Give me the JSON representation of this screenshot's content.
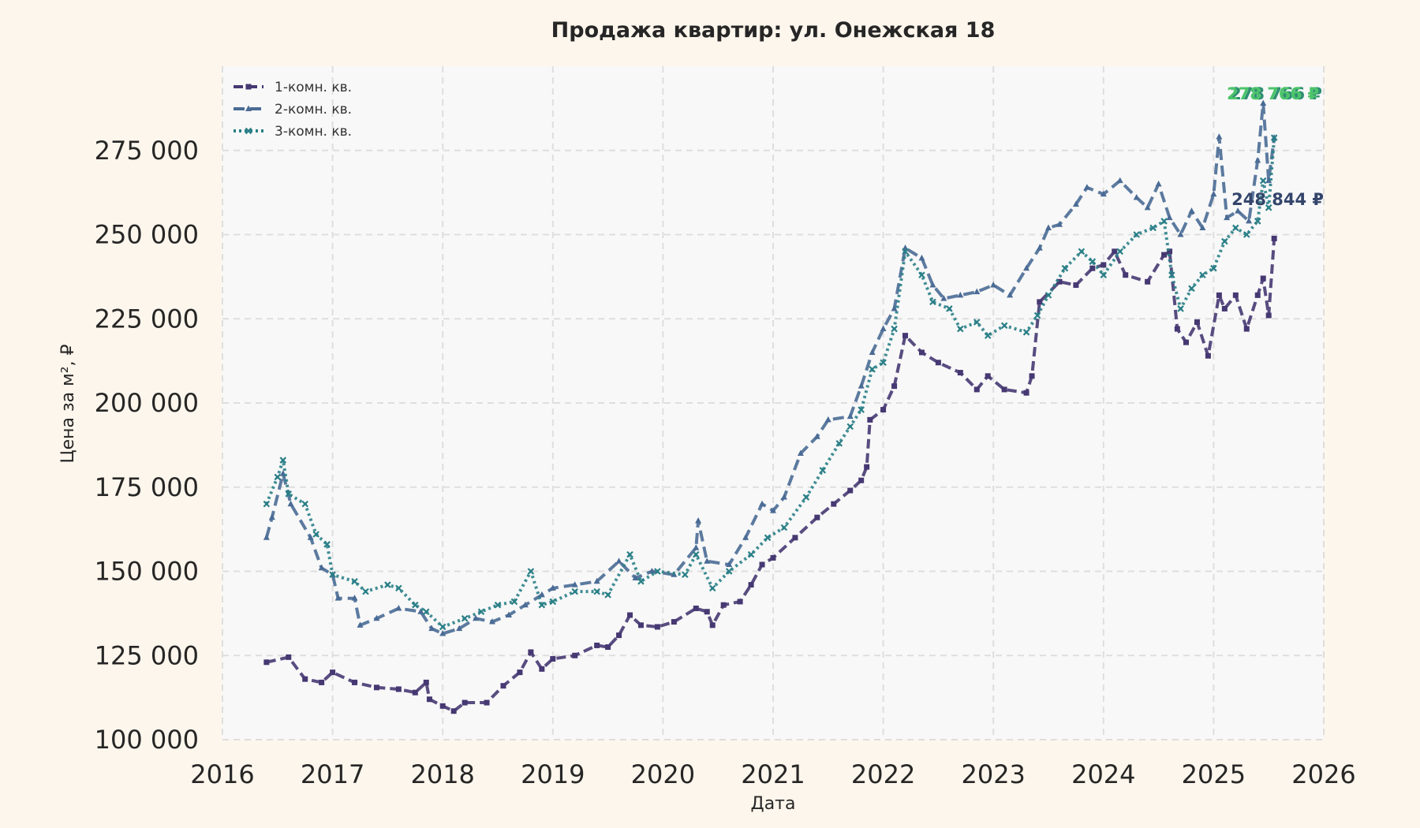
{
  "chart_data": {
    "type": "line",
    "title": "Продажа квартир: ул. Онежская 18",
    "xlabel": "Дата",
    "ylabel": "Цена за м², ₽",
    "xlim": [
      2016,
      2026
    ],
    "ylim": [
      100000,
      300000
    ],
    "x_ticks": [
      "2016",
      "2017",
      "2018",
      "2019",
      "2020",
      "2021",
      "2022",
      "2023",
      "2024",
      "2025",
      "2026"
    ],
    "y_ticks": [
      "100 000",
      "125 000",
      "150 000",
      "175 000",
      "200 000",
      "225 000",
      "250 000",
      "275 000"
    ],
    "y_tick_values": [
      100000,
      125000,
      150000,
      175000,
      200000,
      225000,
      250000,
      275000
    ],
    "grid": true,
    "legend_position": "top-left",
    "series": [
      {
        "name": "1-комн. кв.",
        "color": "#463872",
        "marker": "square",
        "end_label": "248 844 ₽",
        "points": [
          [
            2016.4,
            123000
          ],
          [
            2016.6,
            124500
          ],
          [
            2016.75,
            118000
          ],
          [
            2016.9,
            117000
          ],
          [
            2017.0,
            120000
          ],
          [
            2017.2,
            117000
          ],
          [
            2017.4,
            115500
          ],
          [
            2017.6,
            115000
          ],
          [
            2017.75,
            114000
          ],
          [
            2017.85,
            117000
          ],
          [
            2017.88,
            112000
          ],
          [
            2018.0,
            110000
          ],
          [
            2018.1,
            108500
          ],
          [
            2018.2,
            111000
          ],
          [
            2018.4,
            111000
          ],
          [
            2018.55,
            116000
          ],
          [
            2018.7,
            120000
          ],
          [
            2018.8,
            126000
          ],
          [
            2018.9,
            121000
          ],
          [
            2019.0,
            124000
          ],
          [
            2019.2,
            125000
          ],
          [
            2019.4,
            128000
          ],
          [
            2019.5,
            127500
          ],
          [
            2019.6,
            131000
          ],
          [
            2019.7,
            137000
          ],
          [
            2019.8,
            134000
          ],
          [
            2019.95,
            133500
          ],
          [
            2020.1,
            135000
          ],
          [
            2020.3,
            139000
          ],
          [
            2020.4,
            138000
          ],
          [
            2020.45,
            134000
          ],
          [
            2020.55,
            140000
          ],
          [
            2020.7,
            141000
          ],
          [
            2020.8,
            146000
          ],
          [
            2020.9,
            152000
          ],
          [
            2021.0,
            154000
          ],
          [
            2021.2,
            160000
          ],
          [
            2021.4,
            166000
          ],
          [
            2021.55,
            170000
          ],
          [
            2021.7,
            174000
          ],
          [
            2021.8,
            177000
          ],
          [
            2021.85,
            181000
          ],
          [
            2021.88,
            195000
          ],
          [
            2022.0,
            198000
          ],
          [
            2022.1,
            205000
          ],
          [
            2022.2,
            220000
          ],
          [
            2022.35,
            215000
          ],
          [
            2022.5,
            212000
          ],
          [
            2022.7,
            209000
          ],
          [
            2022.85,
            204000
          ],
          [
            2022.95,
            208000
          ],
          [
            2023.1,
            204000
          ],
          [
            2023.3,
            203000
          ],
          [
            2023.35,
            208000
          ],
          [
            2023.42,
            230000
          ],
          [
            2023.6,
            236000
          ],
          [
            2023.75,
            235000
          ],
          [
            2023.9,
            240000
          ],
          [
            2024.0,
            241000
          ],
          [
            2024.1,
            245000
          ],
          [
            2024.2,
            238000
          ],
          [
            2024.4,
            236000
          ],
          [
            2024.55,
            244000
          ],
          [
            2024.6,
            245000
          ],
          [
            2024.67,
            222000
          ],
          [
            2024.75,
            218000
          ],
          [
            2024.85,
            224000
          ],
          [
            2024.95,
            214000
          ],
          [
            2025.05,
            232000
          ],
          [
            2025.1,
            228000
          ],
          [
            2025.2,
            232000
          ],
          [
            2025.3,
            222000
          ],
          [
            2025.4,
            232000
          ],
          [
            2025.45,
            237000
          ],
          [
            2025.5,
            226000
          ],
          [
            2025.55,
            248844
          ]
        ]
      },
      {
        "name": "2-комн. кв.",
        "color": "#4a6b95",
        "marker": "triangle",
        "end_label": "278 766 ₽",
        "points": [
          [
            2016.4,
            160000
          ],
          [
            2016.45,
            166000
          ],
          [
            2016.55,
            179000
          ],
          [
            2016.62,
            170000
          ],
          [
            2016.8,
            160000
          ],
          [
            2016.9,
            151000
          ],
          [
            2017.0,
            149000
          ],
          [
            2017.05,
            142000
          ],
          [
            2017.2,
            142000
          ],
          [
            2017.25,
            134000
          ],
          [
            2017.4,
            136000
          ],
          [
            2017.6,
            139000
          ],
          [
            2017.8,
            138000
          ],
          [
            2017.9,
            133000
          ],
          [
            2018.0,
            131500
          ],
          [
            2018.15,
            133000
          ],
          [
            2018.3,
            136000
          ],
          [
            2018.45,
            135000
          ],
          [
            2018.6,
            137000
          ],
          [
            2018.75,
            140000
          ],
          [
            2018.9,
            143000
          ],
          [
            2019.0,
            145000
          ],
          [
            2019.2,
            146000
          ],
          [
            2019.4,
            147000
          ],
          [
            2019.6,
            153000
          ],
          [
            2019.75,
            148000
          ],
          [
            2019.9,
            150000
          ],
          [
            2020.1,
            149000
          ],
          [
            2020.3,
            157000
          ],
          [
            2020.32,
            165000
          ],
          [
            2020.4,
            153000
          ],
          [
            2020.6,
            152000
          ],
          [
            2020.75,
            160000
          ],
          [
            2020.9,
            170000
          ],
          [
            2021.0,
            168000
          ],
          [
            2021.1,
            172000
          ],
          [
            2021.25,
            185000
          ],
          [
            2021.4,
            190000
          ],
          [
            2021.5,
            195000
          ],
          [
            2021.7,
            196000
          ],
          [
            2021.8,
            205000
          ],
          [
            2021.9,
            215000
          ],
          [
            2022.0,
            222000
          ],
          [
            2022.1,
            228000
          ],
          [
            2022.2,
            246000
          ],
          [
            2022.35,
            243000
          ],
          [
            2022.45,
            235000
          ],
          [
            2022.55,
            231000
          ],
          [
            2022.7,
            232000
          ],
          [
            2022.85,
            233000
          ],
          [
            2023.0,
            235000
          ],
          [
            2023.15,
            232000
          ],
          [
            2023.3,
            240000
          ],
          [
            2023.42,
            246000
          ],
          [
            2023.5,
            252000
          ],
          [
            2023.6,
            253000
          ],
          [
            2023.75,
            259000
          ],
          [
            2023.85,
            264000
          ],
          [
            2024.0,
            262000
          ],
          [
            2024.15,
            266000
          ],
          [
            2024.3,
            261000
          ],
          [
            2024.4,
            258000
          ],
          [
            2024.5,
            265000
          ],
          [
            2024.6,
            255000
          ],
          [
            2024.7,
            250000
          ],
          [
            2024.8,
            257000
          ],
          [
            2024.9,
            252000
          ],
          [
            2025.0,
            262000
          ],
          [
            2025.05,
            279000
          ],
          [
            2025.12,
            255000
          ],
          [
            2025.22,
            257000
          ],
          [
            2025.32,
            254000
          ],
          [
            2025.4,
            272000
          ],
          [
            2025.45,
            289000
          ],
          [
            2025.5,
            266000
          ],
          [
            2025.55,
            278766
          ]
        ]
      },
      {
        "name": "3-комн. кв.",
        "color": "#2a7f87",
        "marker": "x",
        "end_label": "278 766 ₽",
        "points": [
          [
            2016.4,
            170000
          ],
          [
            2016.5,
            178000
          ],
          [
            2016.55,
            183000
          ],
          [
            2016.6,
            173000
          ],
          [
            2016.75,
            170000
          ],
          [
            2016.85,
            161000
          ],
          [
            2016.95,
            158000
          ],
          [
            2017.0,
            149000
          ],
          [
            2017.2,
            147000
          ],
          [
            2017.3,
            144000
          ],
          [
            2017.5,
            146000
          ],
          [
            2017.6,
            145000
          ],
          [
            2017.75,
            140000
          ],
          [
            2017.85,
            138000
          ],
          [
            2018.0,
            133500
          ],
          [
            2018.2,
            136000
          ],
          [
            2018.35,
            138000
          ],
          [
            2018.5,
            140000
          ],
          [
            2018.65,
            141000
          ],
          [
            2018.8,
            150000
          ],
          [
            2018.9,
            140000
          ],
          [
            2019.0,
            141000
          ],
          [
            2019.2,
            144000
          ],
          [
            2019.4,
            144000
          ],
          [
            2019.5,
            143000
          ],
          [
            2019.7,
            155000
          ],
          [
            2019.8,
            147000
          ],
          [
            2019.95,
            150000
          ],
          [
            2020.2,
            149000
          ],
          [
            2020.3,
            155000
          ],
          [
            2020.45,
            145000
          ],
          [
            2020.6,
            150000
          ],
          [
            2020.8,
            155000
          ],
          [
            2020.95,
            160000
          ],
          [
            2021.1,
            163000
          ],
          [
            2021.3,
            172000
          ],
          [
            2021.45,
            180000
          ],
          [
            2021.6,
            188000
          ],
          [
            2021.7,
            193000
          ],
          [
            2021.8,
            198000
          ],
          [
            2021.9,
            210000
          ],
          [
            2022.0,
            212000
          ],
          [
            2022.1,
            222000
          ],
          [
            2022.2,
            245000
          ],
          [
            2022.35,
            238000
          ],
          [
            2022.45,
            230000
          ],
          [
            2022.6,
            228000
          ],
          [
            2022.7,
            222000
          ],
          [
            2022.85,
            224000
          ],
          [
            2022.95,
            220000
          ],
          [
            2023.1,
            223000
          ],
          [
            2023.3,
            221000
          ],
          [
            2023.4,
            226000
          ],
          [
            2023.5,
            232000
          ],
          [
            2023.65,
            240000
          ],
          [
            2023.8,
            245000
          ],
          [
            2023.9,
            242000
          ],
          [
            2024.0,
            238000
          ],
          [
            2024.15,
            245000
          ],
          [
            2024.3,
            250000
          ],
          [
            2024.45,
            252000
          ],
          [
            2024.55,
            254000
          ],
          [
            2024.62,
            238000
          ],
          [
            2024.7,
            228000
          ],
          [
            2024.8,
            234000
          ],
          [
            2024.9,
            238000
          ],
          [
            2025.0,
            240000
          ],
          [
            2025.1,
            248000
          ],
          [
            2025.2,
            252000
          ],
          [
            2025.3,
            250000
          ],
          [
            2025.4,
            254000
          ],
          [
            2025.45,
            266000
          ],
          [
            2025.5,
            258000
          ],
          [
            2025.55,
            278766
          ]
        ]
      }
    ]
  }
}
